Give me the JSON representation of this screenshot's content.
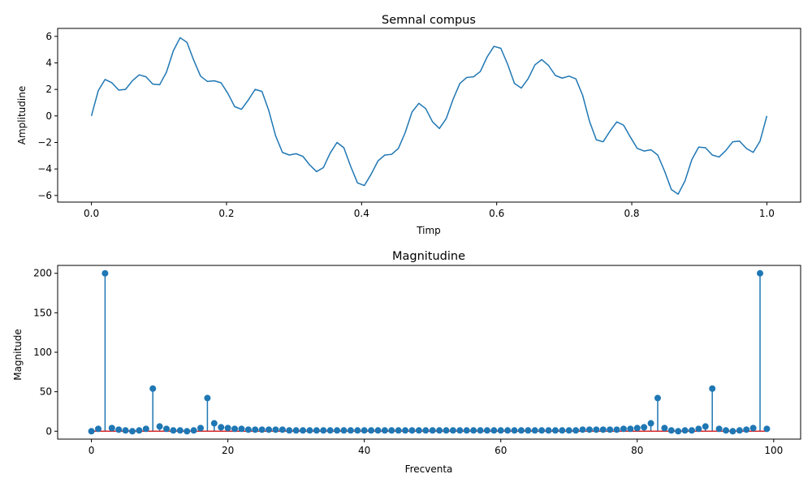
{
  "colors": {
    "line": "#1f77b4",
    "marker": "#1f77b4",
    "baseline": "#d62728",
    "axes": "#000000",
    "background": "#ffffff"
  },
  "chart_data": [
    {
      "type": "line",
      "title": "Semnal compus",
      "xlabel": "Timp",
      "ylabel": "Amplitudine",
      "xlim": [
        -0.05,
        1.05
      ],
      "ylim": [
        -6.5,
        6.6
      ],
      "xticks": [
        0.0,
        0.2,
        0.4,
        0.6,
        0.8,
        1.0
      ],
      "xtick_labels": [
        "0.0",
        "0.2",
        "0.4",
        "0.6",
        "0.8",
        "1.0"
      ],
      "yticks": [
        -6,
        -4,
        -2,
        0,
        2,
        4,
        6
      ],
      "ytick_labels": [
        "−6",
        "−4",
        "−2",
        "0",
        "2",
        "4",
        "6"
      ],
      "grid": false,
      "series": [
        {
          "x": [
            0.0,
            0.0101,
            0.0202,
            0.0303,
            0.0404,
            0.0505,
            0.0606,
            0.0707,
            0.0808,
            0.0909,
            0.101,
            0.1111,
            0.1212,
            0.1313,
            0.1414,
            0.1515,
            0.1616,
            0.1717,
            0.1818,
            0.1919,
            0.202,
            0.2121,
            0.2222,
            0.2323,
            0.2424,
            0.2525,
            0.2626,
            0.2727,
            0.2828,
            0.2929,
            0.303,
            0.3131,
            0.3232,
            0.3333,
            0.3434,
            0.3535,
            0.3636,
            0.3737,
            0.3838,
            0.3939,
            0.404,
            0.4141,
            0.4242,
            0.4343,
            0.4444,
            0.4545,
            0.4646,
            0.4747,
            0.4848,
            0.4949,
            0.5051,
            0.5152,
            0.5253,
            0.5354,
            0.5455,
            0.5556,
            0.5657,
            0.5758,
            0.5859,
            0.596,
            0.6061,
            0.6162,
            0.6263,
            0.6364,
            0.6465,
            0.6566,
            0.6667,
            0.6768,
            0.6869,
            0.697,
            0.7071,
            0.7172,
            0.7273,
            0.7374,
            0.7475,
            0.7576,
            0.7677,
            0.7778,
            0.7879,
            0.798,
            0.8081,
            0.8182,
            0.8283,
            0.8384,
            0.8485,
            0.8586,
            0.8687,
            0.8788,
            0.8889,
            0.899,
            0.9091,
            0.9192,
            0.9293,
            0.9394,
            0.9495,
            0.9596,
            0.9697,
            0.9798,
            0.9899,
            1.0
          ],
          "y": [
            0.0,
            1.9,
            2.75,
            2.5,
            1.95,
            2.0,
            2.65,
            3.1,
            2.95,
            2.4,
            2.35,
            3.3,
            4.9,
            5.9,
            5.55,
            4.2,
            3.0,
            2.6,
            2.65,
            2.5,
            1.7,
            0.7,
            0.5,
            1.2,
            2.0,
            1.85,
            0.4,
            -1.5,
            -2.75,
            -2.95,
            -2.85,
            -3.05,
            -3.7,
            -4.2,
            -3.9,
            -2.8,
            -2.0,
            -2.4,
            -3.8,
            -5.05,
            -5.25,
            -4.4,
            -3.4,
            -2.95,
            -2.9,
            -2.45,
            -1.25,
            0.3,
            0.95,
            0.55,
            -0.45,
            -0.95,
            -0.2,
            1.25,
            2.45,
            2.9,
            2.95,
            3.35,
            4.45,
            5.25,
            5.1,
            3.9,
            2.45,
            2.1,
            2.8,
            3.85,
            4.25,
            3.8,
            3.05,
            2.85,
            3.0,
            2.8,
            1.55,
            -0.4,
            -1.8,
            -1.95,
            -1.15,
            -0.45,
            -0.7,
            -1.6,
            -2.45,
            -2.65,
            -2.55,
            -2.95,
            -4.15,
            -5.55,
            -5.9,
            -4.9,
            -3.3,
            -2.35,
            -2.4,
            -2.95,
            -3.1,
            -2.6,
            -1.95,
            -1.9,
            -2.45,
            -2.75,
            -1.9,
            0.0
          ]
        }
      ]
    },
    {
      "type": "scatter",
      "title": "Magnitudine",
      "xlabel": "Frecventa",
      "ylabel": "Magnitude",
      "xlim": [
        -4.95,
        103.95
      ],
      "ylim": [
        -10,
        210
      ],
      "xticks": [
        0,
        20,
        40,
        60,
        80,
        100
      ],
      "xtick_labels": [
        "0",
        "20",
        "40",
        "60",
        "80",
        "100"
      ],
      "yticks": [
        0,
        50,
        100,
        150,
        200
      ],
      "ytick_labels": [
        "0",
        "50",
        "100",
        "150",
        "200"
      ],
      "grid": false,
      "baseline": 0,
      "series": [
        {
          "x": [
            0,
            1,
            2,
            3,
            4,
            5,
            6,
            7,
            8,
            9,
            10,
            11,
            12,
            13,
            14,
            15,
            16,
            17,
            18,
            19,
            20,
            21,
            22,
            23,
            24,
            25,
            26,
            27,
            28,
            29,
            30,
            31,
            32,
            33,
            34,
            35,
            36,
            37,
            38,
            39,
            40,
            41,
            42,
            43,
            44,
            45,
            46,
            47,
            48,
            49,
            50,
            51,
            52,
            53,
            54,
            55,
            56,
            57,
            58,
            59,
            60,
            61,
            62,
            63,
            64,
            65,
            66,
            67,
            68,
            69,
            70,
            71,
            72,
            73,
            74,
            75,
            76,
            77,
            78,
            79,
            80,
            81,
            82,
            83,
            84,
            85,
            86,
            87,
            88,
            89,
            90,
            91,
            92,
            93,
            94,
            95,
            96,
            97,
            98,
            99
          ],
          "values": [
            0,
            3,
            200,
            4,
            2,
            1,
            0,
            1,
            3,
            54,
            6,
            3,
            1,
            1,
            0,
            1,
            4,
            42,
            10,
            5,
            4,
            3,
            3,
            2,
            2,
            2,
            2,
            2,
            2,
            1,
            1,
            1,
            1,
            1,
            1,
            1,
            1,
            1,
            1,
            1,
            1,
            1,
            1,
            1,
            1,
            1,
            1,
            1,
            1,
            1,
            1,
            1,
            1,
            1,
            1,
            1,
            1,
            1,
            1,
            1,
            1,
            1,
            1,
            1,
            1,
            1,
            1,
            1,
            1,
            1,
            1,
            1,
            2,
            2,
            2,
            2,
            2,
            2,
            3,
            3,
            4,
            5,
            10,
            42,
            4,
            1,
            0,
            1,
            1,
            3,
            6,
            54,
            3,
            1,
            0,
            1,
            2,
            4,
            200,
            3
          ]
        }
      ]
    }
  ]
}
